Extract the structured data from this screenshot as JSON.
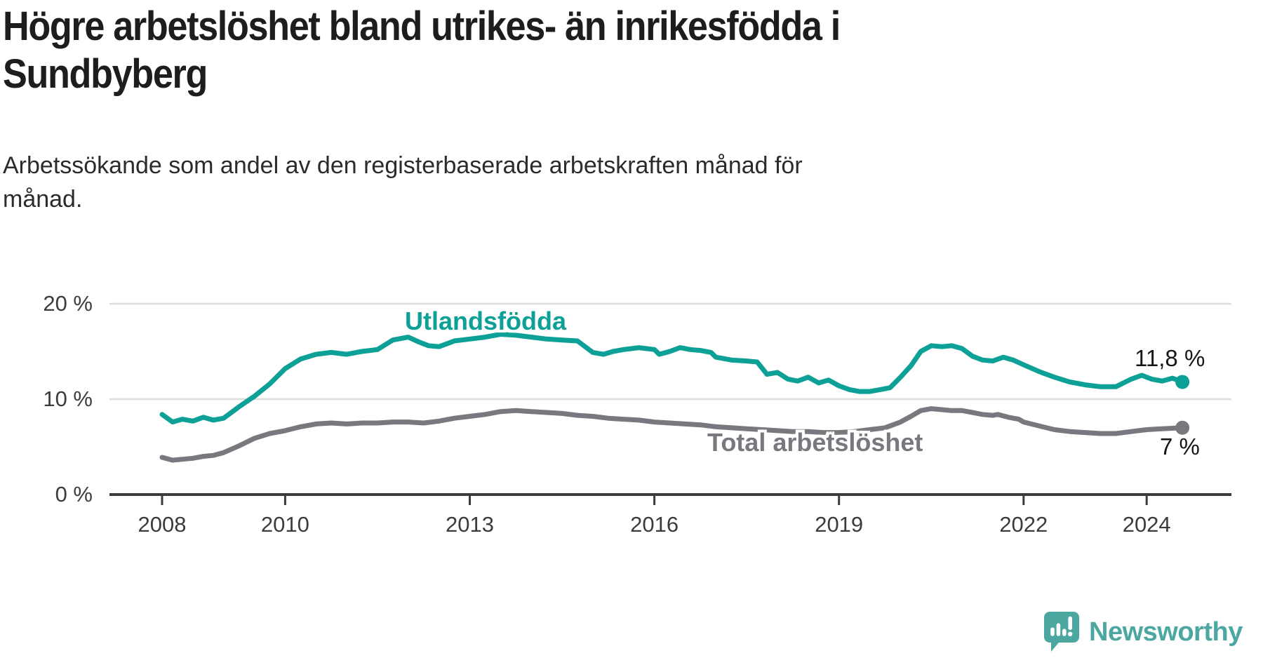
{
  "page": {
    "title_lines": [
      "Högre arbetslöshet bland utrikes- än inrikesfödda i",
      "Sundbyberg"
    ],
    "subtitle_lines": [
      "Arbetssökande som andel av den registerbaserade arbetskraften månad för",
      "månad."
    ]
  },
  "chart_data": {
    "type": "line",
    "title": "Högre arbetslöshet bland utrikes- än inrikesfödda i Sundbyberg",
    "subtitle": "Arbetssökande som andel av den registerbaserade arbetskraften månad för månad.",
    "grid": "horizontal-only",
    "legend": "inline-series-labels",
    "x_axis": {
      "range": [
        2007.8,
        2025.4
      ],
      "ticks": [
        {
          "value": 2008,
          "label": "2008"
        },
        {
          "value": 2010,
          "label": "2010"
        },
        {
          "value": 2013,
          "label": "2013"
        },
        {
          "value": 2016,
          "label": "2016"
        },
        {
          "value": 2019,
          "label": "2019"
        },
        {
          "value": 2022,
          "label": "2022"
        },
        {
          "value": 2024,
          "label": "2024"
        }
      ]
    },
    "y_axis": {
      "unit": "%",
      "range": [
        0,
        22
      ],
      "ticks": [
        {
          "value": 20,
          "label": "20 %"
        },
        {
          "value": 10,
          "label": "10 %"
        },
        {
          "value": 0,
          "label": "0 %"
        }
      ]
    },
    "style": {
      "gridline_color": "#dcdcdc",
      "axis_color": "#3b3b3b",
      "value_label_color": "#161616"
    },
    "series": [
      {
        "name": "Utlandsfödda",
        "color": "#0da096",
        "end_label": "11,8 %",
        "end_value": 11.8,
        "points": [
          [
            2008.0,
            8.4
          ],
          [
            2008.17,
            7.6
          ],
          [
            2008.33,
            7.9
          ],
          [
            2008.5,
            7.7
          ],
          [
            2008.67,
            8.1
          ],
          [
            2008.83,
            7.8
          ],
          [
            2009.0,
            8.0
          ],
          [
            2009.25,
            9.2
          ],
          [
            2009.5,
            10.3
          ],
          [
            2009.75,
            11.6
          ],
          [
            2010.0,
            13.2
          ],
          [
            2010.25,
            14.2
          ],
          [
            2010.5,
            14.7
          ],
          [
            2010.75,
            14.9
          ],
          [
            2011.0,
            14.7
          ],
          [
            2011.25,
            15.0
          ],
          [
            2011.5,
            15.2
          ],
          [
            2011.75,
            16.2
          ],
          [
            2012.0,
            16.5
          ],
          [
            2012.17,
            16.0
          ],
          [
            2012.33,
            15.6
          ],
          [
            2012.5,
            15.5
          ],
          [
            2012.75,
            16.1
          ],
          [
            2013.0,
            16.3
          ],
          [
            2013.25,
            16.5
          ],
          [
            2013.5,
            16.8
          ],
          [
            2013.75,
            16.7
          ],
          [
            2014.0,
            16.5
          ],
          [
            2014.25,
            16.3
          ],
          [
            2014.5,
            16.2
          ],
          [
            2014.75,
            16.1
          ],
          [
            2015.0,
            14.9
          ],
          [
            2015.17,
            14.7
          ],
          [
            2015.33,
            15.0
          ],
          [
            2015.5,
            15.2
          ],
          [
            2015.75,
            15.4
          ],
          [
            2016.0,
            15.2
          ],
          [
            2016.08,
            14.7
          ],
          [
            2016.25,
            15.0
          ],
          [
            2016.42,
            15.4
          ],
          [
            2016.58,
            15.2
          ],
          [
            2016.75,
            15.1
          ],
          [
            2016.92,
            14.9
          ],
          [
            2017.0,
            14.4
          ],
          [
            2017.25,
            14.1
          ],
          [
            2017.5,
            14.0
          ],
          [
            2017.67,
            13.9
          ],
          [
            2017.83,
            12.6
          ],
          [
            2018.0,
            12.8
          ],
          [
            2018.17,
            12.1
          ],
          [
            2018.33,
            11.9
          ],
          [
            2018.5,
            12.3
          ],
          [
            2018.67,
            11.7
          ],
          [
            2018.83,
            12.0
          ],
          [
            2019.0,
            11.4
          ],
          [
            2019.17,
            11.0
          ],
          [
            2019.33,
            10.8
          ],
          [
            2019.5,
            10.8
          ],
          [
            2019.67,
            11.0
          ],
          [
            2019.83,
            11.2
          ],
          [
            2020.0,
            12.3
          ],
          [
            2020.17,
            13.5
          ],
          [
            2020.33,
            15.0
          ],
          [
            2020.5,
            15.6
          ],
          [
            2020.67,
            15.5
          ],
          [
            2020.83,
            15.6
          ],
          [
            2021.0,
            15.3
          ],
          [
            2021.17,
            14.5
          ],
          [
            2021.33,
            14.1
          ],
          [
            2021.5,
            14.0
          ],
          [
            2021.67,
            14.4
          ],
          [
            2021.83,
            14.1
          ],
          [
            2022.0,
            13.6
          ],
          [
            2022.25,
            12.9
          ],
          [
            2022.5,
            12.3
          ],
          [
            2022.75,
            11.8
          ],
          [
            2023.0,
            11.5
          ],
          [
            2023.25,
            11.3
          ],
          [
            2023.5,
            11.3
          ],
          [
            2023.75,
            12.1
          ],
          [
            2023.92,
            12.5
          ],
          [
            2024.08,
            12.1
          ],
          [
            2024.25,
            11.9
          ],
          [
            2024.42,
            12.2
          ],
          [
            2024.58,
            11.8
          ]
        ]
      },
      {
        "name": "Total arbetslöshet",
        "color": "#7a777e",
        "end_label": "7 %",
        "end_value": 7.0,
        "points": [
          [
            2008.0,
            3.9
          ],
          [
            2008.17,
            3.6
          ],
          [
            2008.33,
            3.7
          ],
          [
            2008.5,
            3.8
          ],
          [
            2008.67,
            4.0
          ],
          [
            2008.83,
            4.1
          ],
          [
            2009.0,
            4.4
          ],
          [
            2009.25,
            5.1
          ],
          [
            2009.5,
            5.9
          ],
          [
            2009.75,
            6.4
          ],
          [
            2010.0,
            6.7
          ],
          [
            2010.25,
            7.1
          ],
          [
            2010.5,
            7.4
          ],
          [
            2010.75,
            7.5
          ],
          [
            2011.0,
            7.4
          ],
          [
            2011.25,
            7.5
          ],
          [
            2011.5,
            7.5
          ],
          [
            2011.75,
            7.6
          ],
          [
            2012.0,
            7.6
          ],
          [
            2012.25,
            7.5
          ],
          [
            2012.5,
            7.7
          ],
          [
            2012.75,
            8.0
          ],
          [
            2013.0,
            8.2
          ],
          [
            2013.25,
            8.4
          ],
          [
            2013.5,
            8.7
          ],
          [
            2013.75,
            8.8
          ],
          [
            2014.0,
            8.7
          ],
          [
            2014.25,
            8.6
          ],
          [
            2014.5,
            8.5
          ],
          [
            2014.75,
            8.3
          ],
          [
            2015.0,
            8.2
          ],
          [
            2015.25,
            8.0
          ],
          [
            2015.5,
            7.9
          ],
          [
            2015.75,
            7.8
          ],
          [
            2016.0,
            7.6
          ],
          [
            2016.25,
            7.5
          ],
          [
            2016.5,
            7.4
          ],
          [
            2016.75,
            7.3
          ],
          [
            2017.0,
            7.1
          ],
          [
            2017.25,
            7.0
          ],
          [
            2017.5,
            6.9
          ],
          [
            2017.75,
            6.8
          ],
          [
            2018.0,
            6.7
          ],
          [
            2018.25,
            6.6
          ],
          [
            2018.5,
            6.6
          ],
          [
            2018.75,
            6.5
          ],
          [
            2019.0,
            6.5
          ],
          [
            2019.25,
            6.6
          ],
          [
            2019.5,
            6.8
          ],
          [
            2019.75,
            7.0
          ],
          [
            2020.0,
            7.6
          ],
          [
            2020.17,
            8.2
          ],
          [
            2020.33,
            8.8
          ],
          [
            2020.5,
            9.0
          ],
          [
            2020.67,
            8.9
          ],
          [
            2020.83,
            8.8
          ],
          [
            2021.0,
            8.8
          ],
          [
            2021.17,
            8.6
          ],
          [
            2021.33,
            8.4
          ],
          [
            2021.5,
            8.3
          ],
          [
            2021.58,
            8.4
          ],
          [
            2021.75,
            8.1
          ],
          [
            2021.92,
            7.9
          ],
          [
            2022.0,
            7.6
          ],
          [
            2022.25,
            7.2
          ],
          [
            2022.5,
            6.8
          ],
          [
            2022.75,
            6.6
          ],
          [
            2023.0,
            6.5
          ],
          [
            2023.25,
            6.4
          ],
          [
            2023.5,
            6.4
          ],
          [
            2023.75,
            6.6
          ],
          [
            2024.0,
            6.8
          ],
          [
            2024.25,
            6.9
          ],
          [
            2024.58,
            7.0
          ]
        ]
      }
    ]
  },
  "branding": {
    "logo_text": "Newsworthy",
    "logo_color": "#4ca7a1",
    "icon": "speech-bubble-bar-chart-icon"
  }
}
